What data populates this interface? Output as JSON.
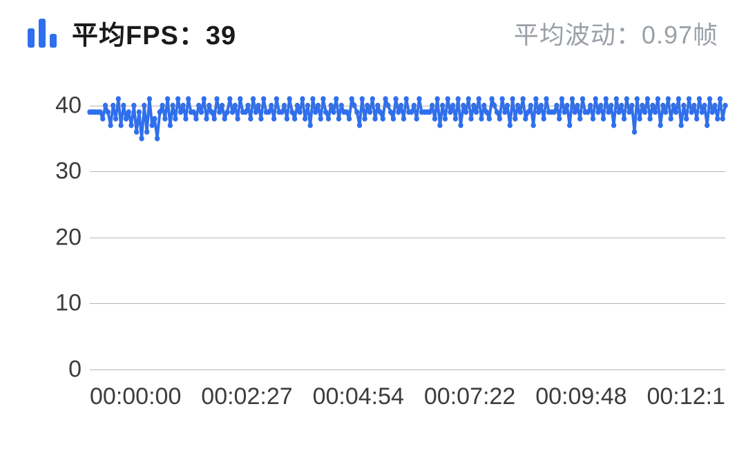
{
  "header": {
    "title_label": "平均FPS：",
    "title_value": "39",
    "subtitle_label": "平均波动：",
    "subtitle_value": "0.97帧",
    "title_color": "#1a1a1a",
    "subtitle_color": "#9aa0a6",
    "icon_color": "#2f6fed",
    "icon_bar_heights": [
      28,
      42,
      20
    ]
  },
  "chart": {
    "type": "line",
    "background_color": "#ffffff",
    "grid_color": "#7a7a7a",
    "line_color": "#2f6fed",
    "line_width": 4,
    "marker_size": 4,
    "ylim": [
      0,
      45
    ],
    "yticks": [
      0,
      10,
      20,
      30,
      40
    ],
    "ytick_labels": [
      "0",
      "10",
      "20",
      "30",
      "40"
    ],
    "xtick_labels": [
      "00:00:00",
      "00:02:27",
      "00:04:54",
      "00:07:22",
      "00:09:48",
      "00:12:1"
    ],
    "x_domain_seconds": [
      0,
      735
    ],
    "data": [
      [
        0,
        39
      ],
      [
        3,
        39
      ],
      [
        6,
        39
      ],
      [
        9,
        39
      ],
      [
        12,
        39
      ],
      [
        15,
        38
      ],
      [
        18,
        40
      ],
      [
        21,
        39
      ],
      [
        24,
        37
      ],
      [
        27,
        40
      ],
      [
        30,
        38
      ],
      [
        33,
        41
      ],
      [
        36,
        37
      ],
      [
        39,
        40
      ],
      [
        42,
        38
      ],
      [
        45,
        39
      ],
      [
        48,
        37
      ],
      [
        51,
        40
      ],
      [
        54,
        36
      ],
      [
        57,
        39
      ],
      [
        60,
        35
      ],
      [
        63,
        40
      ],
      [
        66,
        36
      ],
      [
        69,
        41
      ],
      [
        72,
        37
      ],
      [
        75,
        38
      ],
      [
        78,
        35
      ],
      [
        81,
        39
      ],
      [
        84,
        40
      ],
      [
        87,
        38
      ],
      [
        90,
        41
      ],
      [
        93,
        37
      ],
      [
        96,
        40
      ],
      [
        99,
        38
      ],
      [
        102,
        41
      ],
      [
        105,
        39
      ],
      [
        108,
        40
      ],
      [
        111,
        38
      ],
      [
        114,
        41
      ],
      [
        117,
        39
      ],
      [
        120,
        39
      ],
      [
        123,
        38
      ],
      [
        126,
        40
      ],
      [
        129,
        39
      ],
      [
        132,
        41
      ],
      [
        135,
        38
      ],
      [
        138,
        40
      ],
      [
        141,
        39
      ],
      [
        144,
        38
      ],
      [
        147,
        41
      ],
      [
        150,
        39
      ],
      [
        153,
        40
      ],
      [
        156,
        38
      ],
      [
        159,
        39
      ],
      [
        162,
        41
      ],
      [
        165,
        39
      ],
      [
        168,
        40
      ],
      [
        171,
        38
      ],
      [
        174,
        41
      ],
      [
        177,
        39
      ],
      [
        180,
        39
      ],
      [
        183,
        40
      ],
      [
        186,
        38
      ],
      [
        189,
        41
      ],
      [
        192,
        39
      ],
      [
        195,
        40
      ],
      [
        198,
        38
      ],
      [
        201,
        41
      ],
      [
        204,
        39
      ],
      [
        207,
        39
      ],
      [
        210,
        40
      ],
      [
        213,
        38
      ],
      [
        216,
        41
      ],
      [
        219,
        39
      ],
      [
        222,
        39
      ],
      [
        225,
        40
      ],
      [
        228,
        38
      ],
      [
        231,
        41
      ],
      [
        234,
        39
      ],
      [
        237,
        38
      ],
      [
        240,
        40
      ],
      [
        243,
        39
      ],
      [
        246,
        41
      ],
      [
        249,
        38
      ],
      [
        252,
        40
      ],
      [
        255,
        37
      ],
      [
        258,
        41
      ],
      [
        261,
        39
      ],
      [
        264,
        40
      ],
      [
        267,
        38
      ],
      [
        270,
        41
      ],
      [
        273,
        39
      ],
      [
        276,
        38
      ],
      [
        279,
        40
      ],
      [
        282,
        39
      ],
      [
        285,
        41
      ],
      [
        288,
        38
      ],
      [
        291,
        40
      ],
      [
        294,
        39
      ],
      [
        297,
        39
      ],
      [
        300,
        38
      ],
      [
        303,
        41
      ],
      [
        306,
        40
      ],
      [
        309,
        39
      ],
      [
        312,
        37
      ],
      [
        315,
        41
      ],
      [
        318,
        38
      ],
      [
        321,
        40
      ],
      [
        324,
        39
      ],
      [
        327,
        41
      ],
      [
        330,
        38
      ],
      [
        333,
        40
      ],
      [
        336,
        39
      ],
      [
        339,
        38
      ],
      [
        342,
        41
      ],
      [
        345,
        40
      ],
      [
        348,
        39
      ],
      [
        351,
        38
      ],
      [
        354,
        41
      ],
      [
        357,
        39
      ],
      [
        360,
        40
      ],
      [
        363,
        38
      ],
      [
        366,
        41
      ],
      [
        369,
        39
      ],
      [
        372,
        39
      ],
      [
        375,
        40
      ],
      [
        378,
        38
      ],
      [
        381,
        41
      ],
      [
        384,
        39
      ],
      [
        387,
        39
      ],
      [
        390,
        39
      ],
      [
        393,
        39
      ],
      [
        396,
        40
      ],
      [
        399,
        38
      ],
      [
        402,
        41
      ],
      [
        405,
        37
      ],
      [
        408,
        40
      ],
      [
        411,
        38
      ],
      [
        414,
        41
      ],
      [
        417,
        39
      ],
      [
        420,
        40
      ],
      [
        423,
        38
      ],
      [
        426,
        41
      ],
      [
        429,
        37
      ],
      [
        432,
        40
      ],
      [
        435,
        39
      ],
      [
        438,
        41
      ],
      [
        441,
        38
      ],
      [
        444,
        40
      ],
      [
        447,
        39
      ],
      [
        450,
        41
      ],
      [
        453,
        38
      ],
      [
        456,
        40
      ],
      [
        459,
        39
      ],
      [
        462,
        38
      ],
      [
        465,
        41
      ],
      [
        468,
        40
      ],
      [
        471,
        39
      ],
      [
        474,
        38
      ],
      [
        477,
        41
      ],
      [
        480,
        39
      ],
      [
        483,
        40
      ],
      [
        486,
        37
      ],
      [
        489,
        41
      ],
      [
        492,
        38
      ],
      [
        495,
        40
      ],
      [
        498,
        39
      ],
      [
        501,
        41
      ],
      [
        504,
        38
      ],
      [
        507,
        39
      ],
      [
        510,
        40
      ],
      [
        513,
        37
      ],
      [
        516,
        41
      ],
      [
        519,
        39
      ],
      [
        522,
        40
      ],
      [
        525,
        38
      ],
      [
        528,
        41
      ],
      [
        531,
        39
      ],
      [
        534,
        39
      ],
      [
        537,
        39
      ],
      [
        540,
        40
      ],
      [
        543,
        38
      ],
      [
        546,
        41
      ],
      [
        549,
        39
      ],
      [
        552,
        40
      ],
      [
        555,
        37
      ],
      [
        558,
        41
      ],
      [
        561,
        39
      ],
      [
        564,
        40
      ],
      [
        567,
        38
      ],
      [
        570,
        41
      ],
      [
        573,
        39
      ],
      [
        576,
        39
      ],
      [
        579,
        40
      ],
      [
        582,
        38
      ],
      [
        585,
        41
      ],
      [
        588,
        39
      ],
      [
        591,
        40
      ],
      [
        594,
        38
      ],
      [
        597,
        41
      ],
      [
        600,
        39
      ],
      [
        603,
        40
      ],
      [
        606,
        37
      ],
      [
        609,
        41
      ],
      [
        612,
        39
      ],
      [
        615,
        40
      ],
      [
        618,
        38
      ],
      [
        621,
        41
      ],
      [
        624,
        39
      ],
      [
        627,
        40
      ],
      [
        630,
        36
      ],
      [
        633,
        41
      ],
      [
        636,
        38
      ],
      [
        639,
        40
      ],
      [
        642,
        39
      ],
      [
        645,
        41
      ],
      [
        648,
        38
      ],
      [
        651,
        40
      ],
      [
        654,
        39
      ],
      [
        657,
        41
      ],
      [
        660,
        37
      ],
      [
        663,
        40
      ],
      [
        666,
        39
      ],
      [
        669,
        41
      ],
      [
        672,
        38
      ],
      [
        675,
        40
      ],
      [
        678,
        39
      ],
      [
        681,
        41
      ],
      [
        684,
        37
      ],
      [
        687,
        40
      ],
      [
        690,
        38
      ],
      [
        693,
        41
      ],
      [
        696,
        39
      ],
      [
        699,
        40
      ],
      [
        702,
        38
      ],
      [
        705,
        41
      ],
      [
        708,
        39
      ],
      [
        711,
        40
      ],
      [
        714,
        37
      ],
      [
        717,
        41
      ],
      [
        720,
        39
      ],
      [
        723,
        40
      ],
      [
        726,
        38
      ],
      [
        729,
        41
      ],
      [
        732,
        38
      ],
      [
        735,
        40
      ]
    ]
  }
}
